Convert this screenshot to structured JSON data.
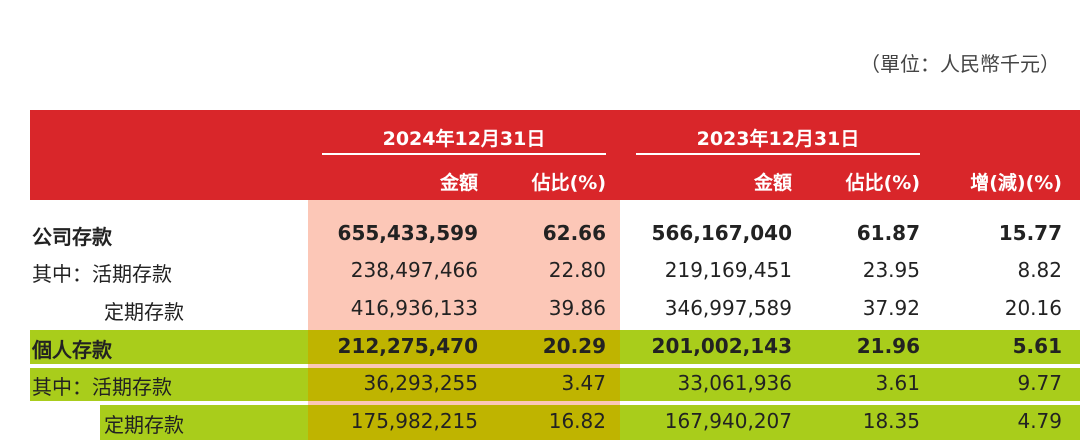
{
  "unit_note": "（單位：人民幣千元）",
  "table": {
    "groups": [
      "2024年12月31日",
      "2023年12月31日"
    ],
    "headers": [
      "金額",
      "佔比(%)",
      "金額",
      "佔比(%)",
      "增(減)(%)"
    ],
    "rows": [
      {
        "label": "公司存款",
        "values": [
          "655,433,599",
          "62.66",
          "566,167,040",
          "61.87",
          "15.77"
        ]
      },
      {
        "label": "其中：活期存款",
        "values": [
          "238,497,466",
          "22.80",
          "219,169,451",
          "23.95",
          "8.82"
        ]
      },
      {
        "label": "定期存款",
        "values": [
          "416,936,133",
          "39.86",
          "346,997,589",
          "37.92",
          "20.16"
        ]
      },
      {
        "label": "個人存款",
        "values": [
          "212,275,470",
          "20.29",
          "201,002,143",
          "21.96",
          "5.61"
        ]
      },
      {
        "label": "其中：活期存款",
        "values": [
          "36,293,255",
          "3.47",
          "33,061,936",
          "3.61",
          "9.77"
        ]
      },
      {
        "label": "定期存款",
        "values": [
          "175,982,215",
          "16.82",
          "167,940,207",
          "18.35",
          "4.79"
        ]
      }
    ]
  }
}
